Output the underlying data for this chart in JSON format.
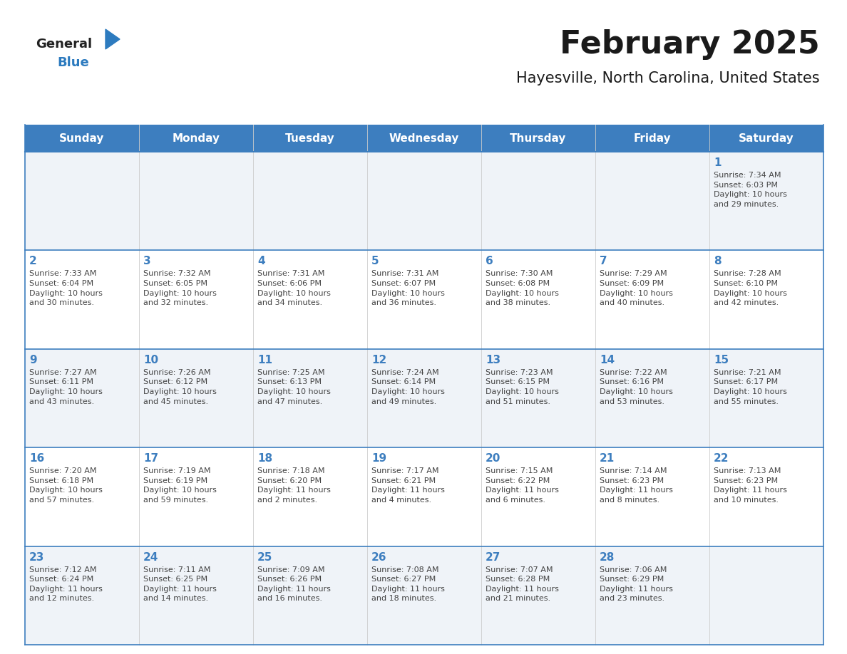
{
  "title": "February 2025",
  "subtitle": "Hayesville, North Carolina, United States",
  "header_bg": "#3d7ebf",
  "header_text_color": "#ffffff",
  "cell_bg_odd": "#eff3f8",
  "cell_bg_even": "#ffffff",
  "border_color": "#3d7ebf",
  "day_headers": [
    "Sunday",
    "Monday",
    "Tuesday",
    "Wednesday",
    "Thursday",
    "Friday",
    "Saturday"
  ],
  "title_color": "#1a1a1a",
  "subtitle_color": "#1a1a1a",
  "general_text_color": "#444444",
  "day_number_color": "#3d7ebf",
  "logo_general_color": "#222222",
  "logo_blue_color": "#2d7bbf",
  "weeks": [
    [
      {
        "day": null,
        "text": ""
      },
      {
        "day": null,
        "text": ""
      },
      {
        "day": null,
        "text": ""
      },
      {
        "day": null,
        "text": ""
      },
      {
        "day": null,
        "text": ""
      },
      {
        "day": null,
        "text": ""
      },
      {
        "day": 1,
        "text": "Sunrise: 7:34 AM\nSunset: 6:03 PM\nDaylight: 10 hours\nand 29 minutes."
      }
    ],
    [
      {
        "day": 2,
        "text": "Sunrise: 7:33 AM\nSunset: 6:04 PM\nDaylight: 10 hours\nand 30 minutes."
      },
      {
        "day": 3,
        "text": "Sunrise: 7:32 AM\nSunset: 6:05 PM\nDaylight: 10 hours\nand 32 minutes."
      },
      {
        "day": 4,
        "text": "Sunrise: 7:31 AM\nSunset: 6:06 PM\nDaylight: 10 hours\nand 34 minutes."
      },
      {
        "day": 5,
        "text": "Sunrise: 7:31 AM\nSunset: 6:07 PM\nDaylight: 10 hours\nand 36 minutes."
      },
      {
        "day": 6,
        "text": "Sunrise: 7:30 AM\nSunset: 6:08 PM\nDaylight: 10 hours\nand 38 minutes."
      },
      {
        "day": 7,
        "text": "Sunrise: 7:29 AM\nSunset: 6:09 PM\nDaylight: 10 hours\nand 40 minutes."
      },
      {
        "day": 8,
        "text": "Sunrise: 7:28 AM\nSunset: 6:10 PM\nDaylight: 10 hours\nand 42 minutes."
      }
    ],
    [
      {
        "day": 9,
        "text": "Sunrise: 7:27 AM\nSunset: 6:11 PM\nDaylight: 10 hours\nand 43 minutes."
      },
      {
        "day": 10,
        "text": "Sunrise: 7:26 AM\nSunset: 6:12 PM\nDaylight: 10 hours\nand 45 minutes."
      },
      {
        "day": 11,
        "text": "Sunrise: 7:25 AM\nSunset: 6:13 PM\nDaylight: 10 hours\nand 47 minutes."
      },
      {
        "day": 12,
        "text": "Sunrise: 7:24 AM\nSunset: 6:14 PM\nDaylight: 10 hours\nand 49 minutes."
      },
      {
        "day": 13,
        "text": "Sunrise: 7:23 AM\nSunset: 6:15 PM\nDaylight: 10 hours\nand 51 minutes."
      },
      {
        "day": 14,
        "text": "Sunrise: 7:22 AM\nSunset: 6:16 PM\nDaylight: 10 hours\nand 53 minutes."
      },
      {
        "day": 15,
        "text": "Sunrise: 7:21 AM\nSunset: 6:17 PM\nDaylight: 10 hours\nand 55 minutes."
      }
    ],
    [
      {
        "day": 16,
        "text": "Sunrise: 7:20 AM\nSunset: 6:18 PM\nDaylight: 10 hours\nand 57 minutes."
      },
      {
        "day": 17,
        "text": "Sunrise: 7:19 AM\nSunset: 6:19 PM\nDaylight: 10 hours\nand 59 minutes."
      },
      {
        "day": 18,
        "text": "Sunrise: 7:18 AM\nSunset: 6:20 PM\nDaylight: 11 hours\nand 2 minutes."
      },
      {
        "day": 19,
        "text": "Sunrise: 7:17 AM\nSunset: 6:21 PM\nDaylight: 11 hours\nand 4 minutes."
      },
      {
        "day": 20,
        "text": "Sunrise: 7:15 AM\nSunset: 6:22 PM\nDaylight: 11 hours\nand 6 minutes."
      },
      {
        "day": 21,
        "text": "Sunrise: 7:14 AM\nSunset: 6:23 PM\nDaylight: 11 hours\nand 8 minutes."
      },
      {
        "day": 22,
        "text": "Sunrise: 7:13 AM\nSunset: 6:23 PM\nDaylight: 11 hours\nand 10 minutes."
      }
    ],
    [
      {
        "day": 23,
        "text": "Sunrise: 7:12 AM\nSunset: 6:24 PM\nDaylight: 11 hours\nand 12 minutes."
      },
      {
        "day": 24,
        "text": "Sunrise: 7:11 AM\nSunset: 6:25 PM\nDaylight: 11 hours\nand 14 minutes."
      },
      {
        "day": 25,
        "text": "Sunrise: 7:09 AM\nSunset: 6:26 PM\nDaylight: 11 hours\nand 16 minutes."
      },
      {
        "day": 26,
        "text": "Sunrise: 7:08 AM\nSunset: 6:27 PM\nDaylight: 11 hours\nand 18 minutes."
      },
      {
        "day": 27,
        "text": "Sunrise: 7:07 AM\nSunset: 6:28 PM\nDaylight: 11 hours\nand 21 minutes."
      },
      {
        "day": 28,
        "text": "Sunrise: 7:06 AM\nSunset: 6:29 PM\nDaylight: 11 hours\nand 23 minutes."
      },
      {
        "day": null,
        "text": ""
      }
    ]
  ]
}
